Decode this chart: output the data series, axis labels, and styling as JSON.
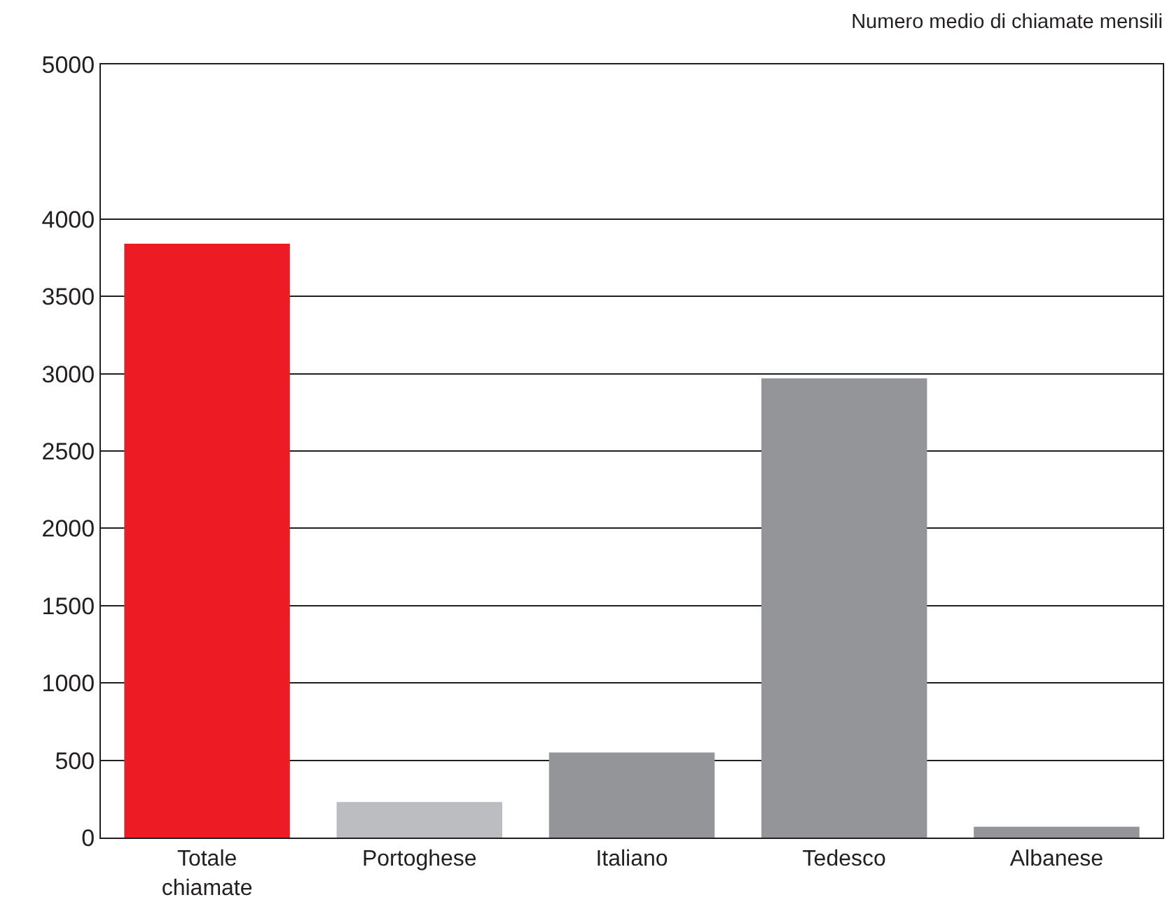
{
  "chart_data": {
    "type": "bar",
    "title": "Numero medio di chiamate mensili",
    "categories": [
      "Totale chiamate",
      "Portoghese",
      "Italiano",
      "Tedesco",
      "Albanese"
    ],
    "values": [
      3840,
      230,
      550,
      2970,
      70
    ],
    "colors": [
      "#ed1c24",
      "#bcbdc0",
      "#939598",
      "#939598",
      "#939598"
    ],
    "ylim": [
      0,
      5000
    ],
    "yticks": [
      0,
      500,
      1000,
      1500,
      2000,
      2500,
      3000,
      3500,
      4000,
      5000
    ],
    "grid": "y"
  }
}
